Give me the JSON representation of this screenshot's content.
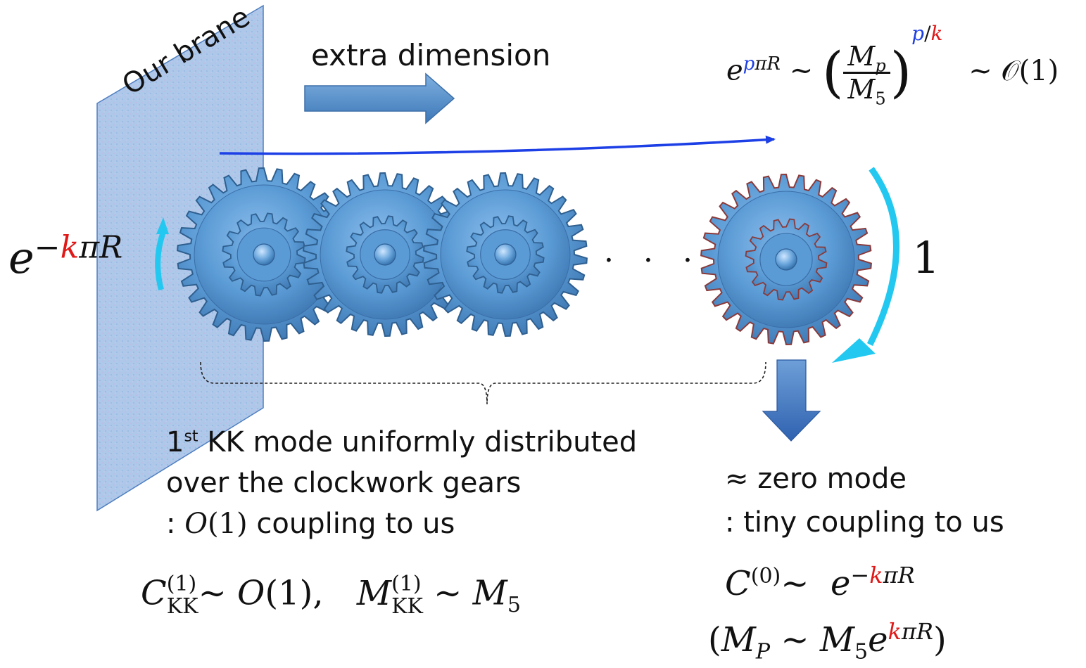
{
  "brane": {
    "label": "Our brane"
  },
  "arrow_label": "extra dimension",
  "left_factor": {
    "base": "e",
    "minus": "−",
    "k": "k",
    "rest": "πR"
  },
  "right_value": "1",
  "dots": "· · ·",
  "top_formula": {
    "e": "e",
    "p": "p",
    "piR": "πR",
    "sim1": "∼",
    "lparen": "(",
    "num": "M",
    "num_sub": "p",
    "den": "M",
    "den_sub": "5",
    "rparen": ")",
    "exp_p": "p",
    "exp_slash": "/",
    "exp_k": "k",
    "sim2": "∼ 𝒪(1)"
  },
  "left_text": {
    "line1_num": "1",
    "line1_sup": "st",
    "line1_rest": " KK mode uniformly distributed",
    "line2": "over the clockwork gears",
    "line3_colon": ":",
    "line3_math": "O",
    "line3_paren": "(1)",
    "line3_rest": " coupling to us"
  },
  "left_formula": {
    "C": "C",
    "C_sup": "(1)",
    "C_sub": "KK",
    "sim1": "∼",
    "O1": "O",
    "O1_rest": "(1),",
    "M": "M",
    "M_sup": "(1)",
    "M_sub": "KK",
    "sim2": "∼",
    "M5": "M",
    "M5_sub": "5"
  },
  "right_text": {
    "line1_approx": "≈",
    "line1_rest": " zero mode",
    "line2": ": tiny coupling to us"
  },
  "right_formula": {
    "C": "C",
    "C_sup": "(0)",
    "sim": "∼",
    "e": "e",
    "minus": "−",
    "k": "k",
    "piR": "πR",
    "lparen": "(",
    "MP": "M",
    "MP_sub": "P",
    "sim2": "∼",
    "M5": "M",
    "M5_sub": "5",
    "e2": "e",
    "k2": "k",
    "piR2": "πR",
    "rparen": ")"
  },
  "colors": {
    "gear": "#5b9bd5",
    "gear_dark": "#2f5f8f",
    "brane": "#a9c4e8",
    "cyan_arrow": "#22c8f0",
    "blue_line": "#1d3fe6",
    "arrow_fill": "#4a86c5",
    "red": "#e01818",
    "blue": "#1d3fe6"
  }
}
